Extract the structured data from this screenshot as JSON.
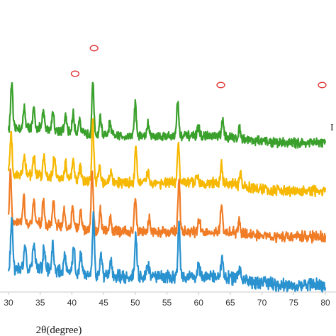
{
  "chart_data": {
    "type": "line",
    "title": "",
    "xlabel": "2θ(degree)",
    "ylabel": "",
    "xlim": [
      30,
      80
    ],
    "x_ticks": [
      "30",
      "35",
      "40",
      "45",
      "50",
      "55",
      "60",
      "65",
      "70",
      "75",
      "80"
    ],
    "grid": false,
    "legend": "none",
    "side_label_fragment": "I",
    "marker_positions_2theta": [
      40.5,
      43.5,
      63.5,
      79.5
    ],
    "series": [
      {
        "color": "#3aa02c",
        "baseline": 0.86,
        "noise": 0.045,
        "tail_drop": 0.08,
        "peaks": [
          [
            30.5,
            0.55
          ],
          [
            32.5,
            0.25
          ],
          [
            34.0,
            0.22
          ],
          [
            35.5,
            0.2
          ],
          [
            37.0,
            0.22
          ],
          [
            39.0,
            0.18
          ],
          [
            40.2,
            0.22
          ],
          [
            41.2,
            0.18
          ],
          [
            43.3,
            0.62
          ],
          [
            44.5,
            0.22
          ],
          [
            46.0,
            0.15
          ],
          [
            50.0,
            0.4
          ],
          [
            52.0,
            0.15
          ],
          [
            56.7,
            0.42
          ],
          [
            60.0,
            0.12
          ],
          [
            63.8,
            0.2
          ],
          [
            66.5,
            0.12
          ]
        ]
      },
      {
        "color": "#f6b800",
        "baseline": 0.9,
        "noise": 0.05,
        "tail_drop": 0.1,
        "peaks": [
          [
            30.4,
            0.5
          ],
          [
            32.5,
            0.24
          ],
          [
            34.0,
            0.2
          ],
          [
            35.6,
            0.22
          ],
          [
            37.2,
            0.24
          ],
          [
            39.0,
            0.18
          ],
          [
            40.2,
            0.22
          ],
          [
            41.3,
            0.16
          ],
          [
            43.3,
            0.7
          ],
          [
            44.4,
            0.2
          ],
          [
            46.2,
            0.14
          ],
          [
            50.1,
            0.44
          ],
          [
            52.0,
            0.14
          ],
          [
            56.8,
            0.46
          ],
          [
            59.8,
            0.12
          ],
          [
            63.6,
            0.22
          ],
          [
            66.6,
            0.12
          ]
        ]
      },
      {
        "color": "#f07c26",
        "baseline": 0.86,
        "noise": 0.05,
        "tail_drop": 0.06,
        "peaks": [
          [
            30.3,
            0.6
          ],
          [
            32.4,
            0.3
          ],
          [
            34.0,
            0.26
          ],
          [
            35.5,
            0.28
          ],
          [
            37.1,
            0.3
          ],
          [
            38.8,
            0.2
          ],
          [
            40.1,
            0.28
          ],
          [
            41.4,
            0.2
          ],
          [
            43.2,
            0.72
          ],
          [
            44.5,
            0.24
          ],
          [
            46.1,
            0.18
          ],
          [
            50.0,
            0.4
          ],
          [
            52.2,
            0.16
          ],
          [
            56.9,
            0.62
          ],
          [
            60.1,
            0.14
          ],
          [
            63.6,
            0.3
          ],
          [
            66.4,
            0.14
          ]
        ]
      },
      {
        "color": "#2a92cf",
        "baseline": 0.86,
        "noise": 0.06,
        "tail_drop": 0.1,
        "peaks": [
          [
            30.5,
            0.6
          ],
          [
            32.6,
            0.3
          ],
          [
            34.0,
            0.28
          ],
          [
            35.6,
            0.26
          ],
          [
            37.0,
            0.3
          ],
          [
            38.9,
            0.22
          ],
          [
            40.3,
            0.34
          ],
          [
            41.4,
            0.22
          ],
          [
            43.4,
            0.72
          ],
          [
            44.6,
            0.26
          ],
          [
            46.2,
            0.18
          ],
          [
            50.1,
            0.5
          ],
          [
            52.0,
            0.16
          ],
          [
            56.9,
            0.62
          ],
          [
            60.0,
            0.14
          ],
          [
            63.7,
            0.26
          ],
          [
            66.5,
            0.14
          ]
        ]
      }
    ]
  }
}
